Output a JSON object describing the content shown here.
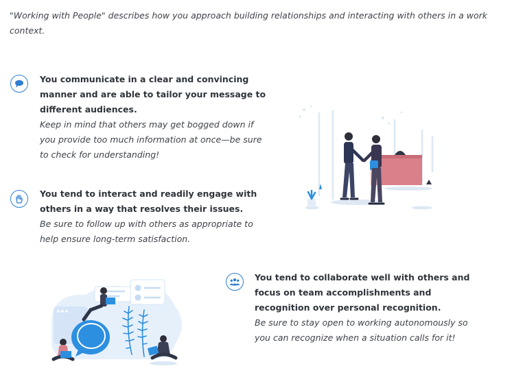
{
  "intro": "\"Working with People\" describes how you approach building relationships and interacting with others in a work context.",
  "items": [
    {
      "icon": "speech-bubble-icon",
      "statement": "You communicate in a clear and convincing manner and are able to tailor your message to different audiences.",
      "tip": "Keep in mind that others may get bogged down if you provide too much information at once—be sure to check for understanding!"
    },
    {
      "icon": "raised-hand-icon",
      "statement": "You tend to interact and readily engage with others in a way that resolves their issues.",
      "tip": "Be sure to follow up with others as appropriate to help ensure long-term satisfaction."
    },
    {
      "icon": "people-group-icon",
      "statement": "You tend to collaborate well with others and focus on team accomplishments and recognition over personal recognition.",
      "tip": "Be sure to stay open to working autonomously so you can recognize when a situation calls for it!"
    }
  ],
  "colors": {
    "accent": "#2f7fd1",
    "text": "#2f343b",
    "illustration_blue": "#2c8fe0",
    "illustration_pink": "#d9808a",
    "illustration_light": "#e6f0fb"
  }
}
